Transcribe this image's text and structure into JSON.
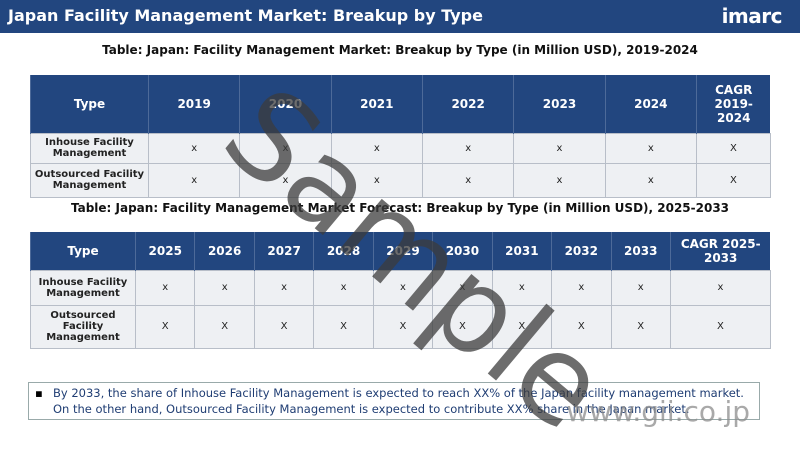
{
  "header": {
    "title": "Japan Facility Management Market: Breakup by Type",
    "logo": "imarc"
  },
  "tables": [
    {
      "caption": "Table: Japan: Facility Management Market: Breakup by Type (in Million USD), 2019-2024",
      "columns": [
        "Type",
        "2019",
        "2020",
        "2021",
        "2022",
        "2023",
        "2024",
        "CAGR 2019-2024"
      ],
      "rows": [
        [
          "Inhouse Facility Management",
          "x",
          "x",
          "x",
          "x",
          "x",
          "x",
          "X"
        ],
        [
          "Outsourced Facility Management",
          "x",
          "x",
          "x",
          "x",
          "x",
          "x",
          "X"
        ]
      ]
    },
    {
      "caption": "Table: Japan: Facility Management Market Forecast: Breakup by Type (in Million USD), 2025-2033",
      "columns": [
        "Type",
        "2025",
        "2026",
        "2027",
        "2028",
        "2029",
        "2030",
        "2031",
        "2032",
        "2033",
        "CAGR 2025-2033"
      ],
      "rows": [
        [
          "Inhouse Facility Management",
          "x",
          "x",
          "x",
          "x",
          "x",
          "x",
          "x",
          "x",
          "x",
          "x"
        ],
        [
          "Outsourced Facility Management",
          "X",
          "X",
          "X",
          "X",
          "X",
          "X",
          "X",
          "X",
          "X",
          "X"
        ]
      ]
    }
  ],
  "note": {
    "bullet": "▪",
    "text": "By 2033, the share of Inhouse Facility Management is expected to reach XX% of the Japan facility management market. On the other hand, Outsourced Facility Management is expected to contribute XX% share in the Japan market."
  },
  "watermark": "Sample",
  "site": "www.gii.co.jp"
}
